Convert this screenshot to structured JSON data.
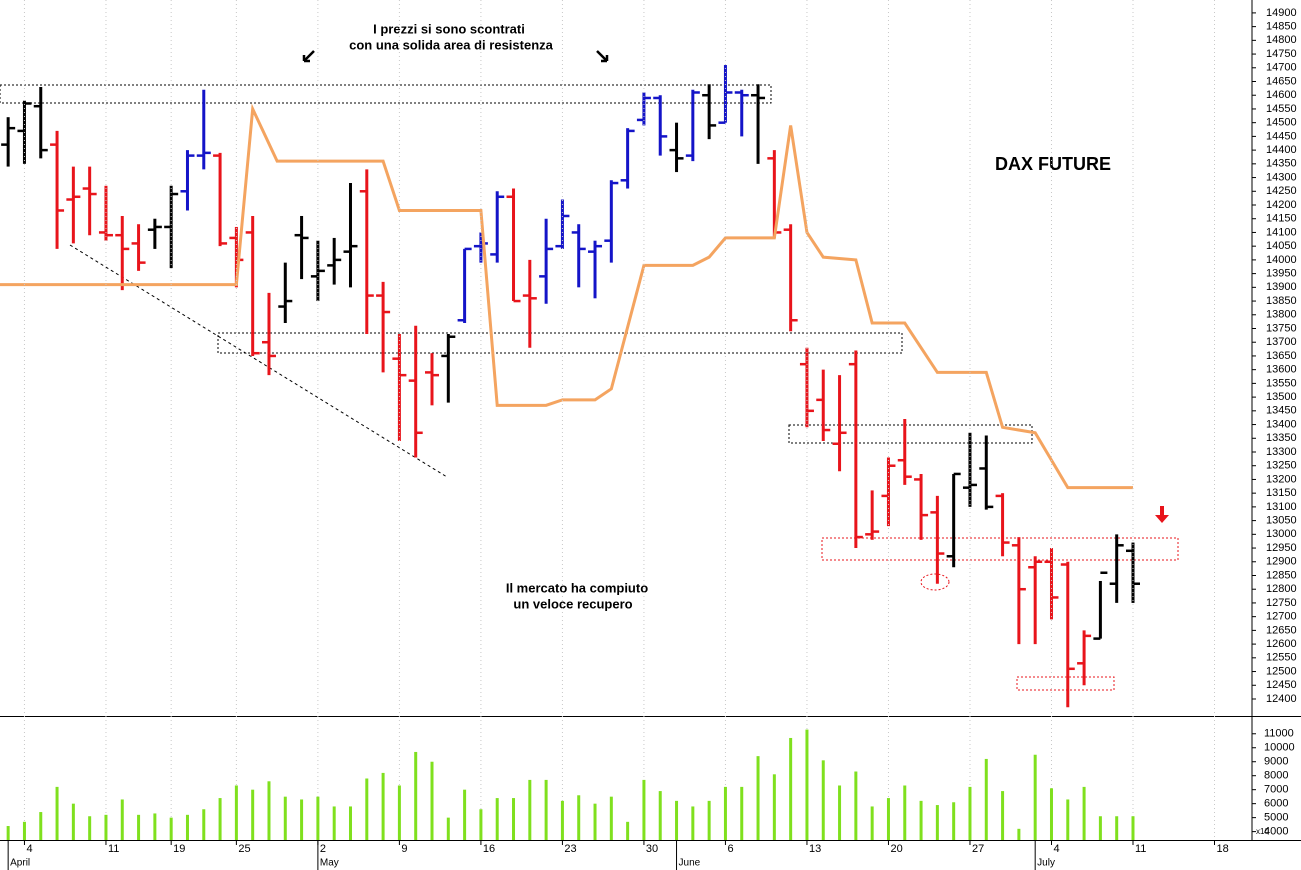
{
  "chart_data": [
    {
      "type": "ohlc",
      "title": "DAX FUTURE",
      "annotations": [
        "I prezzi si sono scontrati",
        "con una solida area di resistenza",
        "Il mercato ha compiuto",
        "un veloce recupero"
      ],
      "xlim": [
        -0.5,
        76.3
      ],
      "ylim": [
        12338,
        14947
      ],
      "yticks": [
        12400,
        12450,
        12500,
        12550,
        12600,
        12650,
        12700,
        12750,
        12800,
        12850,
        12900,
        12950,
        13000,
        13050,
        13100,
        13150,
        13200,
        13250,
        13300,
        13350,
        13400,
        13450,
        13500,
        13550,
        13600,
        13650,
        13700,
        13750,
        13800,
        13850,
        13900,
        13950,
        14000,
        14050,
        14100,
        14150,
        14200,
        14250,
        14300,
        14350,
        14400,
        14450,
        14500,
        14550,
        14600,
        14650,
        14700,
        14750,
        14800,
        14850,
        14900
      ],
      "ohlc": {
        "x": [
          0,
          1,
          2,
          3,
          4,
          5,
          6,
          7,
          8,
          9,
          10,
          11,
          12,
          13,
          14,
          15,
          16,
          17,
          18,
          19,
          20,
          21,
          22,
          23,
          24,
          25,
          26,
          27,
          28,
          29,
          30,
          31,
          32,
          33,
          34,
          35,
          36,
          37,
          38,
          39,
          40,
          41,
          42,
          43,
          44,
          45,
          46,
          47,
          48,
          49,
          50,
          51,
          52,
          53,
          54,
          55,
          56,
          57,
          58,
          59,
          60,
          61,
          62,
          63,
          64,
          65,
          66,
          67,
          68,
          69
        ],
        "open": [
          14420,
          14470,
          14560,
          14420,
          14220,
          14260,
          14100,
          14090,
          14060,
          14110,
          14120,
          14250,
          14380,
          14380,
          14080,
          14100,
          13700,
          13830,
          14090,
          13940,
          13980,
          14030,
          14250,
          13870,
          13640,
          13560,
          13590,
          13650,
          13780,
          14050,
          14020,
          14230,
          13870,
          13940,
          14050,
          14100,
          14030,
          14070,
          14290,
          14510,
          14590,
          14400,
          14380,
          14600,
          14500,
          14610,
          14600,
          14370,
          14110,
          13620,
          13490,
          13330,
          13620,
          13000,
          13140,
          13270,
          13200,
          13080,
          12920,
          13170,
          13240,
          13140,
          12960,
          12880,
          12900,
          12890,
          12530,
          12620,
          12820,
          12940
        ],
        "high": [
          14520,
          14580,
          14630,
          14470,
          14340,
          14340,
          14270,
          14160,
          14130,
          14150,
          14270,
          14400,
          14620,
          14390,
          14120,
          14160,
          13880,
          13990,
          14160,
          14070,
          14080,
          14280,
          14330,
          13920,
          13730,
          13760,
          13660,
          13730,
          14040,
          14100,
          14250,
          14260,
          14000,
          14150,
          14220,
          14130,
          14070,
          14290,
          14480,
          14610,
          14600,
          14500,
          14620,
          14640,
          14710,
          14620,
          14640,
          14400,
          14130,
          13680,
          13600,
          13580,
          13670,
          13160,
          13280,
          13420,
          13220,
          13140,
          13220,
          13370,
          13360,
          13150,
          12990,
          12920,
          12950,
          12900,
          12650,
          12830,
          13000,
          12970
        ],
        "low": [
          14340,
          14350,
          14370,
          14040,
          14060,
          14090,
          14070,
          13890,
          13960,
          14040,
          13970,
          14180,
          14330,
          14050,
          13900,
          13650,
          13580,
          13770,
          13930,
          13850,
          13910,
          13900,
          13730,
          13590,
          13340,
          13280,
          13470,
          13480,
          13770,
          13990,
          13990,
          13850,
          13680,
          13840,
          14040,
          13900,
          13860,
          13990,
          14260,
          14490,
          14380,
          14320,
          14360,
          14440,
          14500,
          14450,
          14350,
          14080,
          13740,
          13390,
          13340,
          13230,
          12950,
          12980,
          13030,
          13180,
          12980,
          12820,
          12880,
          13100,
          13090,
          12920,
          12600,
          12600,
          12690,
          12370,
          12450,
          12620,
          12750,
          12750
        ],
        "close": [
          14480,
          14570,
          14400,
          14180,
          14230,
          14240,
          14090,
          14040,
          13990,
          14120,
          14240,
          14380,
          14390,
          14060,
          14000,
          13660,
          13650,
          13850,
          14080,
          13960,
          14000,
          14050,
          13870,
          13810,
          13580,
          13370,
          13580,
          13720,
          14040,
          14060,
          14230,
          13850,
          13860,
          14040,
          14160,
          14040,
          14050,
          14280,
          14470,
          14590,
          14450,
          14370,
          14610,
          14490,
          14610,
          14600,
          14590,
          14100,
          13780,
          13450,
          13380,
          13370,
          12990,
          13010,
          13250,
          13210,
          13070,
          12930,
          13220,
          13180,
          13100,
          12970,
          12800,
          12900,
          12770,
          12510,
          12630,
          12860,
          12960,
          12820
        ],
        "colors": [
          "#000000",
          "#000000",
          "#000000",
          "#e8141b",
          "#e8141b",
          "#e8141b",
          "#e8141b",
          "#e8141b",
          "#e8141b",
          "#000000",
          "#000000",
          "#1414c8",
          "#1414c8",
          "#e8141b",
          "#e8141b",
          "#e8141b",
          "#e8141b",
          "#000000",
          "#000000",
          "#000000",
          "#000000",
          "#000000",
          "#e8141b",
          "#e8141b",
          "#e8141b",
          "#e8141b",
          "#e8141b",
          "#000000",
          "#1414c8",
          "#1414c8",
          "#1414c8",
          "#e8141b",
          "#e8141b",
          "#1414c8",
          "#1414c8",
          "#1414c8",
          "#1414c8",
          "#1414c8",
          "#1414c8",
          "#1414c8",
          "#1414c8",
          "#000000",
          "#1414c8",
          "#000000",
          "#1414c8",
          "#1414c8",
          "#000000",
          "#e8141b",
          "#e8141b",
          "#e8141b",
          "#e8141b",
          "#e8141b",
          "#e8141b",
          "#e8141b",
          "#e8141b",
          "#e8141b",
          "#e8141b",
          "#e8141b",
          "#000000",
          "#000000",
          "#000000",
          "#e8141b",
          "#e8141b",
          "#e8141b",
          "#e8141b",
          "#e8141b",
          "#e8141b",
          "#000000",
          "#000000",
          "#000000"
        ]
      },
      "series": [
        {
          "color": "#f4a460",
          "x": [
            -0.5,
            14,
            15,
            16.5,
            23,
            24,
            29,
            30,
            33,
            34,
            36,
            37,
            39,
            42,
            43,
            44,
            47,
            48,
            49,
            50,
            52,
            53,
            55,
            57,
            60,
            61,
            63,
            65,
            69
          ],
          "values": [
            13910,
            13910,
            14550,
            14360,
            14360,
            14180,
            14180,
            13470,
            13470,
            13490,
            13490,
            13530,
            13980,
            13980,
            14010,
            14080,
            14080,
            14490,
            14100,
            14010,
            14000,
            13770,
            13770,
            13590,
            13590,
            13390,
            13370,
            13170,
            13170
          ]
        }
      ]
    },
    {
      "type": "bar",
      "axis_label": "x10",
      "color": "#7fe01e",
      "xlim": [
        -0.5,
        76.3
      ],
      "ylim": [
        3400,
        12200
      ],
      "yticks": [
        4000,
        5000,
        6000,
        7000,
        8000,
        9000,
        10000,
        11000
      ],
      "x": [
        0,
        1,
        2,
        3,
        4,
        5,
        6,
        7,
        8,
        9,
        10,
        11,
        12,
        13,
        14,
        15,
        16,
        17,
        18,
        19,
        20,
        21,
        22,
        23,
        24,
        25,
        26,
        27,
        28,
        29,
        30,
        31,
        32,
        33,
        34,
        35,
        36,
        37,
        38,
        39,
        40,
        41,
        42,
        43,
        44,
        45,
        46,
        47,
        48,
        49,
        50,
        51,
        52,
        53,
        54,
        55,
        56,
        57,
        58,
        59,
        60,
        61,
        62,
        63,
        64,
        65,
        66,
        67,
        68,
        69
      ],
      "values": [
        4400,
        4700,
        5400,
        7200,
        6000,
        5100,
        5200,
        6300,
        5200,
        5300,
        5000,
        5200,
        5600,
        6400,
        7300,
        7000,
        7600,
        6500,
        6300,
        6500,
        5800,
        5800,
        7800,
        8200,
        7300,
        9700,
        9000,
        5000,
        7000,
        5600,
        6400,
        6400,
        7700,
        7700,
        6200,
        6600,
        6000,
        6500,
        4700,
        7700,
        6900,
        6200,
        5800,
        6200,
        7200,
        7200,
        9400,
        8100,
        10700,
        11300,
        9100,
        7300,
        8300,
        5800,
        6400,
        7300,
        6200,
        5900,
        6100,
        7200,
        9200,
        6900,
        4200,
        9500,
        7100,
        6300,
        7200,
        5100,
        5100,
        5100
      ],
      "xticks": [
        {
          "value": 1,
          "label": "4"
        },
        {
          "value": 6,
          "label": "11"
        },
        {
          "value": 10,
          "label": "19"
        },
        {
          "value": 14,
          "label": "25"
        },
        {
          "value": 19,
          "label": "2"
        },
        {
          "value": 24,
          "label": "9"
        },
        {
          "value": 29,
          "label": "16"
        },
        {
          "value": 34,
          "label": "23"
        },
        {
          "value": 39,
          "label": "30"
        },
        {
          "value": 44,
          "label": "6"
        },
        {
          "value": 49,
          "label": "13"
        },
        {
          "value": 54,
          "label": "20"
        },
        {
          "value": 59,
          "label": "27"
        },
        {
          "value": 64,
          "label": "4"
        },
        {
          "value": 69,
          "label": "11"
        },
        {
          "value": 74,
          "label": "18"
        }
      ],
      "month_ticks": [
        {
          "value": 0,
          "label": "April"
        },
        {
          "value": 19,
          "label": "May"
        },
        {
          "value": 41,
          "label": "June"
        },
        {
          "value": 63,
          "label": "July"
        }
      ]
    }
  ]
}
